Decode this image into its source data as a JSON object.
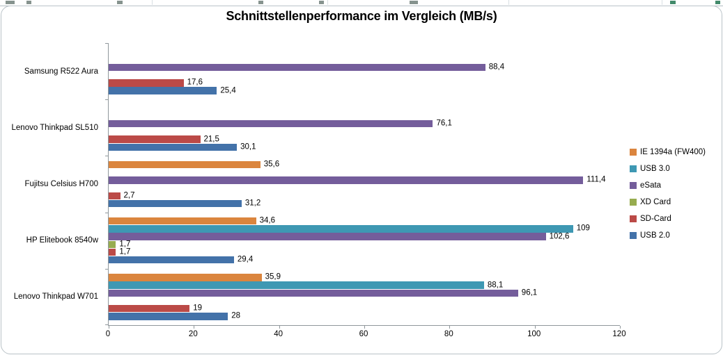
{
  "chart_data": {
    "type": "bar",
    "orientation": "horizontal",
    "title": "Schnittstellenperformance im Vergleich (MB/s)",
    "categories": [
      "Samsung R522 Aura",
      "Lenovo Thinkpad SL510",
      "Fujitsu Celsius H700",
      "HP Elitebook 8540w",
      "Lenovo Thinkpad W701"
    ],
    "series": [
      {
        "name": "IE 1394a (FW400)",
        "color": "#DB853E",
        "values": [
          null,
          null,
          35.6,
          34.6,
          35.9
        ]
      },
      {
        "name": "USB 3.0",
        "color": "#3E98B3",
        "values": [
          null,
          null,
          null,
          109,
          88.1
        ]
      },
      {
        "name": "eSata",
        "color": "#745D9B",
        "values": [
          88.4,
          76.1,
          111.4,
          102.6,
          96.1
        ]
      },
      {
        "name": "XD Card",
        "color": "#97AC4F",
        "values": [
          null,
          null,
          null,
          1.7,
          null
        ]
      },
      {
        "name": "SD-Card",
        "color": "#BB4A47",
        "values": [
          17.6,
          21.5,
          2.7,
          1.7,
          19
        ]
      },
      {
        "name": "USB 2.0",
        "color": "#4372A9",
        "values": [
          25.4,
          30.1,
          31.2,
          29.4,
          28
        ]
      }
    ],
    "xlim": [
      0,
      120
    ],
    "xticks": [
      0,
      20,
      40,
      60,
      80,
      100,
      120
    ],
    "grid": false,
    "legend_position": "right",
    "value_decimal_separator": ",",
    "axis_color": "#8F979B"
  }
}
